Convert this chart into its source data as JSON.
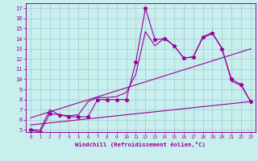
{
  "xlabel": "Windchill (Refroidissement éolien,°C)",
  "xlim": [
    -0.5,
    23.5
  ],
  "ylim": [
    4.8,
    17.5
  ],
  "xticks": [
    0,
    1,
    2,
    3,
    4,
    5,
    6,
    7,
    8,
    9,
    10,
    11,
    12,
    13,
    14,
    15,
    16,
    17,
    18,
    19,
    20,
    21,
    22,
    23
  ],
  "yticks": [
    5,
    6,
    7,
    8,
    9,
    10,
    11,
    12,
    13,
    14,
    15,
    16,
    17
  ],
  "bg_color": "#c8eeee",
  "grid_color": "#a0cccc",
  "line_color": "#990099",
  "line1_x": [
    0,
    1,
    2,
    3,
    4,
    5,
    6,
    7,
    8,
    9,
    10,
    11,
    12,
    13,
    14,
    15,
    16,
    17,
    18,
    19,
    20,
    21,
    22,
    23
  ],
  "line1_y": [
    5.0,
    4.8,
    6.6,
    6.5,
    6.3,
    6.3,
    6.3,
    8.0,
    8.0,
    8.0,
    8.0,
    11.7,
    17.0,
    13.9,
    14.0,
    13.3,
    12.1,
    12.2,
    14.2,
    14.6,
    13.0,
    10.0,
    9.5,
    7.8
  ],
  "line2_x": [
    0,
    1,
    2,
    3,
    4,
    5,
    6,
    7,
    8,
    9,
    10,
    11,
    12,
    13,
    14,
    15,
    16,
    17,
    18,
    19,
    20,
    21,
    22,
    23
  ],
  "line2_y": [
    5.0,
    5.0,
    7.0,
    6.5,
    6.4,
    6.5,
    7.8,
    8.2,
    8.2,
    8.3,
    8.7,
    10.5,
    14.7,
    13.3,
    14.1,
    13.3,
    12.1,
    12.2,
    14.1,
    14.5,
    13.1,
    9.8,
    9.4,
    7.8
  ],
  "line3_x": [
    0,
    23
  ],
  "line3_y": [
    5.5,
    7.8
  ],
  "line4_x": [
    0,
    23
  ],
  "line4_y": [
    6.2,
    13.0
  ]
}
